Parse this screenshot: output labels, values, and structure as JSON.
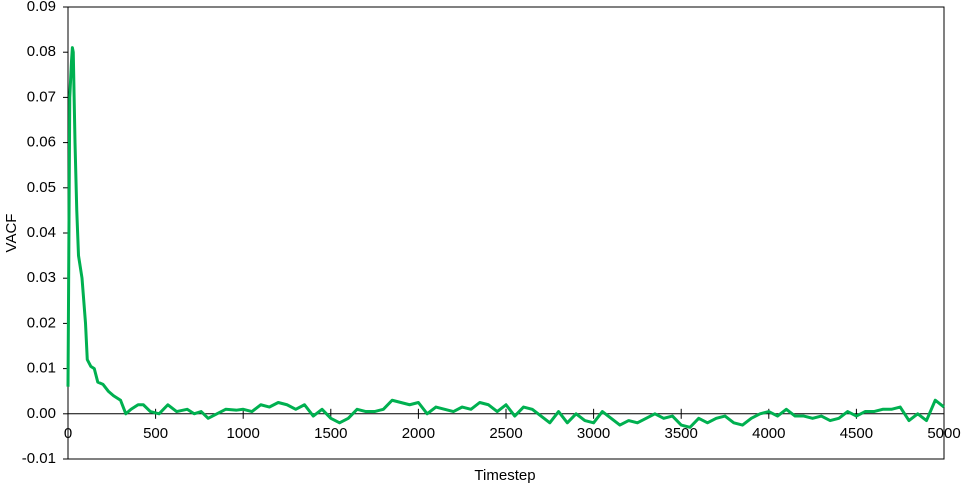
{
  "chart_data": {
    "type": "line",
    "xlabel": "Timestep",
    "ylabel": "VACF",
    "x": [
      0,
      10,
      20,
      25,
      30,
      35,
      40,
      50,
      60,
      80,
      100,
      110,
      130,
      150,
      170,
      200,
      230,
      260,
      300,
      330,
      360,
      400,
      430,
      470,
      520,
      570,
      620,
      680,
      720,
      760,
      800,
      850,
      900,
      960,
      1000,
      1050,
      1100,
      1150,
      1200,
      1250,
      1300,
      1350,
      1400,
      1450,
      1500,
      1550,
      1600,
      1650,
      1700,
      1750,
      1800,
      1850,
      1900,
      1950,
      2000,
      2050,
      2100,
      2150,
      2200,
      2250,
      2300,
      2350,
      2400,
      2450,
      2500,
      2550,
      2600,
      2650,
      2700,
      2750,
      2800,
      2850,
      2900,
      2950,
      3000,
      3050,
      3100,
      3150,
      3200,
      3250,
      3300,
      3350,
      3400,
      3450,
      3500,
      3550,
      3600,
      3650,
      3700,
      3750,
      3800,
      3850,
      3900,
      3950,
      4000,
      4050,
      4100,
      4150,
      4200,
      4250,
      4300,
      4350,
      4400,
      4450,
      4500,
      4550,
      4600,
      4650,
      4700,
      4750,
      4800,
      4850,
      4900,
      4950,
      5000
    ],
    "series": [
      {
        "name": "VACF",
        "color": "#00b050",
        "values": [
          0.006,
          0.07,
          0.078,
          0.081,
          0.08,
          0.07,
          0.06,
          0.045,
          0.035,
          0.03,
          0.02,
          0.012,
          0.0105,
          0.01,
          0.007,
          0.0065,
          0.005,
          0.004,
          0.003,
          0.0,
          0.001,
          0.002,
          0.002,
          0.0005,
          0.0,
          0.002,
          0.0005,
          0.001,
          0.0,
          0.0005,
          -0.001,
          0.0,
          0.001,
          0.0008,
          0.001,
          0.0005,
          0.002,
          0.0015,
          0.0025,
          0.002,
          0.001,
          0.002,
          -0.0005,
          0.001,
          -0.001,
          -0.002,
          -0.001,
          0.001,
          0.0005,
          0.0005,
          0.001,
          0.003,
          0.0025,
          0.002,
          0.0025,
          0.0,
          0.0015,
          0.001,
          0.0005,
          0.0015,
          0.001,
          0.0025,
          0.002,
          0.0005,
          0.002,
          -0.0005,
          0.0015,
          0.001,
          -0.0005,
          -0.002,
          0.0005,
          -0.002,
          0.0,
          -0.0015,
          -0.002,
          0.0005,
          -0.001,
          -0.0025,
          -0.0015,
          -0.002,
          -0.001,
          0.0,
          -0.001,
          -0.0005,
          -0.0025,
          -0.003,
          -0.001,
          -0.002,
          -0.001,
          -0.0005,
          -0.002,
          -0.0025,
          -0.001,
          0.0,
          0.0005,
          -0.0005,
          0.001,
          -0.0005,
          -0.0005,
          -0.001,
          -0.0005,
          -0.0015,
          -0.001,
          0.0005,
          -0.0005,
          0.0005,
          0.0005,
          0.001,
          0.001,
          0.0015,
          -0.0015,
          0.0,
          -0.0015,
          0.003,
          0.0015
        ]
      }
    ],
    "xlim": [
      0,
      5000
    ],
    "xticks": [
      0,
      500,
      1000,
      1500,
      2000,
      2500,
      3000,
      3500,
      4000,
      4500,
      5000
    ],
    "ylim": [
      -0.01,
      0.09
    ],
    "yticks": [
      -0.01,
      {
        "value": 0,
        "label": "0.00"
      },
      0.01,
      0.02,
      0.03,
      0.04,
      0.05,
      0.06,
      0.07,
      0.08,
      0.09
    ],
    "grid": false
  }
}
